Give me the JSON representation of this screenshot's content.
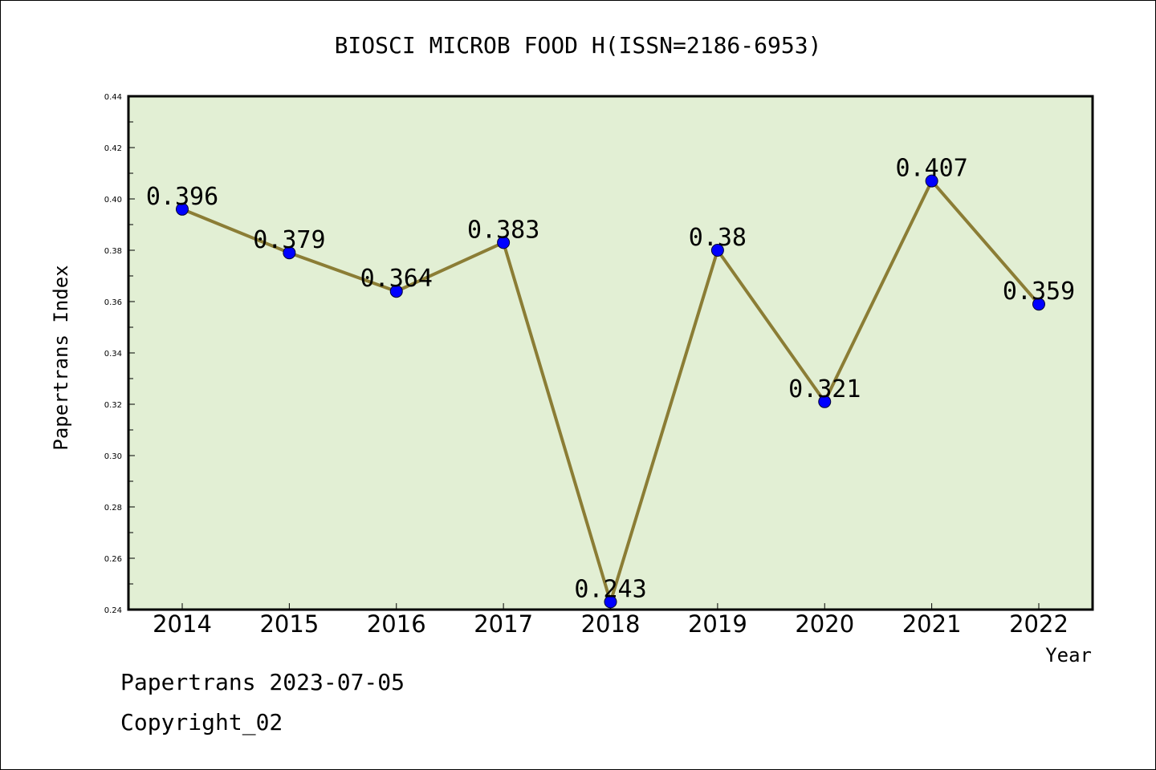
{
  "chart_data": {
    "type": "line",
    "title": "BIOSCI MICROB FOOD H(ISSN=2186-6953)",
    "xlabel": "Year",
    "ylabel": "Papertrans Index",
    "categories": [
      "2014",
      "2015",
      "2016",
      "2017",
      "2018",
      "2019",
      "2020",
      "2021",
      "2022"
    ],
    "series": [
      {
        "values": [
          0.396,
          0.379,
          0.364,
          0.383,
          0.243,
          0.38,
          0.321,
          0.407,
          0.359
        ],
        "labels": [
          "0.396",
          "0.379",
          "0.364",
          "0.383",
          "0.243",
          "0.38",
          "0.321",
          "0.407",
          "0.359"
        ]
      }
    ],
    "ylim": [
      0.24,
      0.44
    ],
    "yticks": [
      "0.24",
      "0.26",
      "0.28",
      "0.30",
      "0.32",
      "0.34",
      "0.36",
      "0.38",
      "0.40",
      "0.42",
      "0.44"
    ],
    "grid": false,
    "colors": {
      "plot_background": "#e2efd4",
      "line": "#8b7d35",
      "marker": "#0000ff"
    }
  },
  "footer": {
    "date_line": "Papertrans 2023-07-05",
    "copyright_line": "Copyright_02"
  }
}
